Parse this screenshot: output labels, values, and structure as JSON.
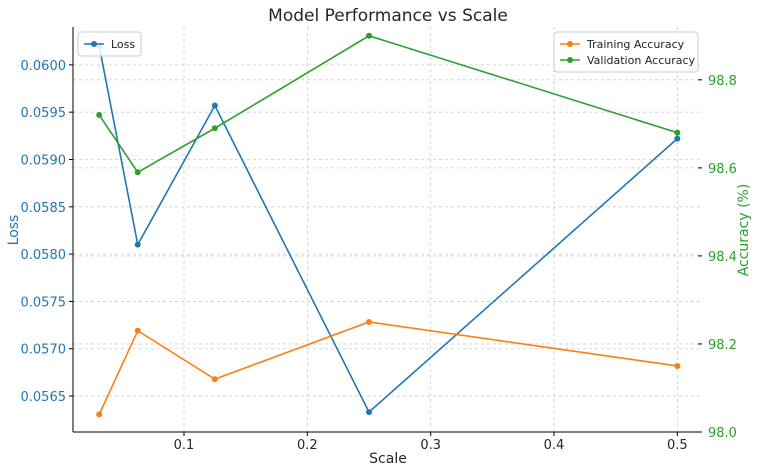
{
  "chart_data": {
    "type": "line",
    "title": "Model Performance vs Scale",
    "xlabel": "Scale",
    "ylabel_left": "Loss",
    "ylabel_right": "Accuracy (%)",
    "x": [
      0.03125,
      0.0625,
      0.125,
      0.25,
      0.5
    ],
    "xlim": [
      0.01,
      0.52
    ],
    "xticks": [
      0.1,
      0.2,
      0.3,
      0.4,
      0.5
    ],
    "xtick_labels": [
      "0.1",
      "0.2",
      "0.3",
      "0.4",
      "0.5"
    ],
    "left_axis": {
      "ylim": [
        0.05612,
        0.0604
      ],
      "ticks": [
        0.0565,
        0.057,
        0.0575,
        0.058,
        0.0585,
        0.059,
        0.0595,
        0.06
      ],
      "tick_labels": [
        "0.0565",
        "0.0570",
        "0.0575",
        "0.0580",
        "0.0585",
        "0.0590",
        "0.0595",
        "0.0600"
      ],
      "color": "#1f77b4"
    },
    "right_axis": {
      "ylim": [
        98.0,
        98.92
      ],
      "ticks": [
        98.0,
        98.2,
        98.4,
        98.6,
        98.8
      ],
      "tick_labels": [
        "98.0",
        "98.2",
        "98.4",
        "98.6",
        "98.8"
      ],
      "color": "#2ca02c"
    },
    "series": [
      {
        "name": "Loss",
        "axis": "left",
        "color": "#1f77b4",
        "values": [
          0.0602,
          0.0581,
          0.05957,
          0.05633,
          0.05922
        ]
      },
      {
        "name": "Training Accuracy",
        "axis": "right",
        "color": "#ff7f0e",
        "values": [
          98.04,
          98.23,
          98.12,
          98.25,
          98.15
        ]
      },
      {
        "name": "Validation Accuracy",
        "axis": "right",
        "color": "#2ca02c",
        "values": [
          98.72,
          98.59,
          98.69,
          98.9,
          98.68
        ]
      }
    ],
    "grid": true,
    "legend_left": "top-left",
    "legend_right": "top-right"
  }
}
